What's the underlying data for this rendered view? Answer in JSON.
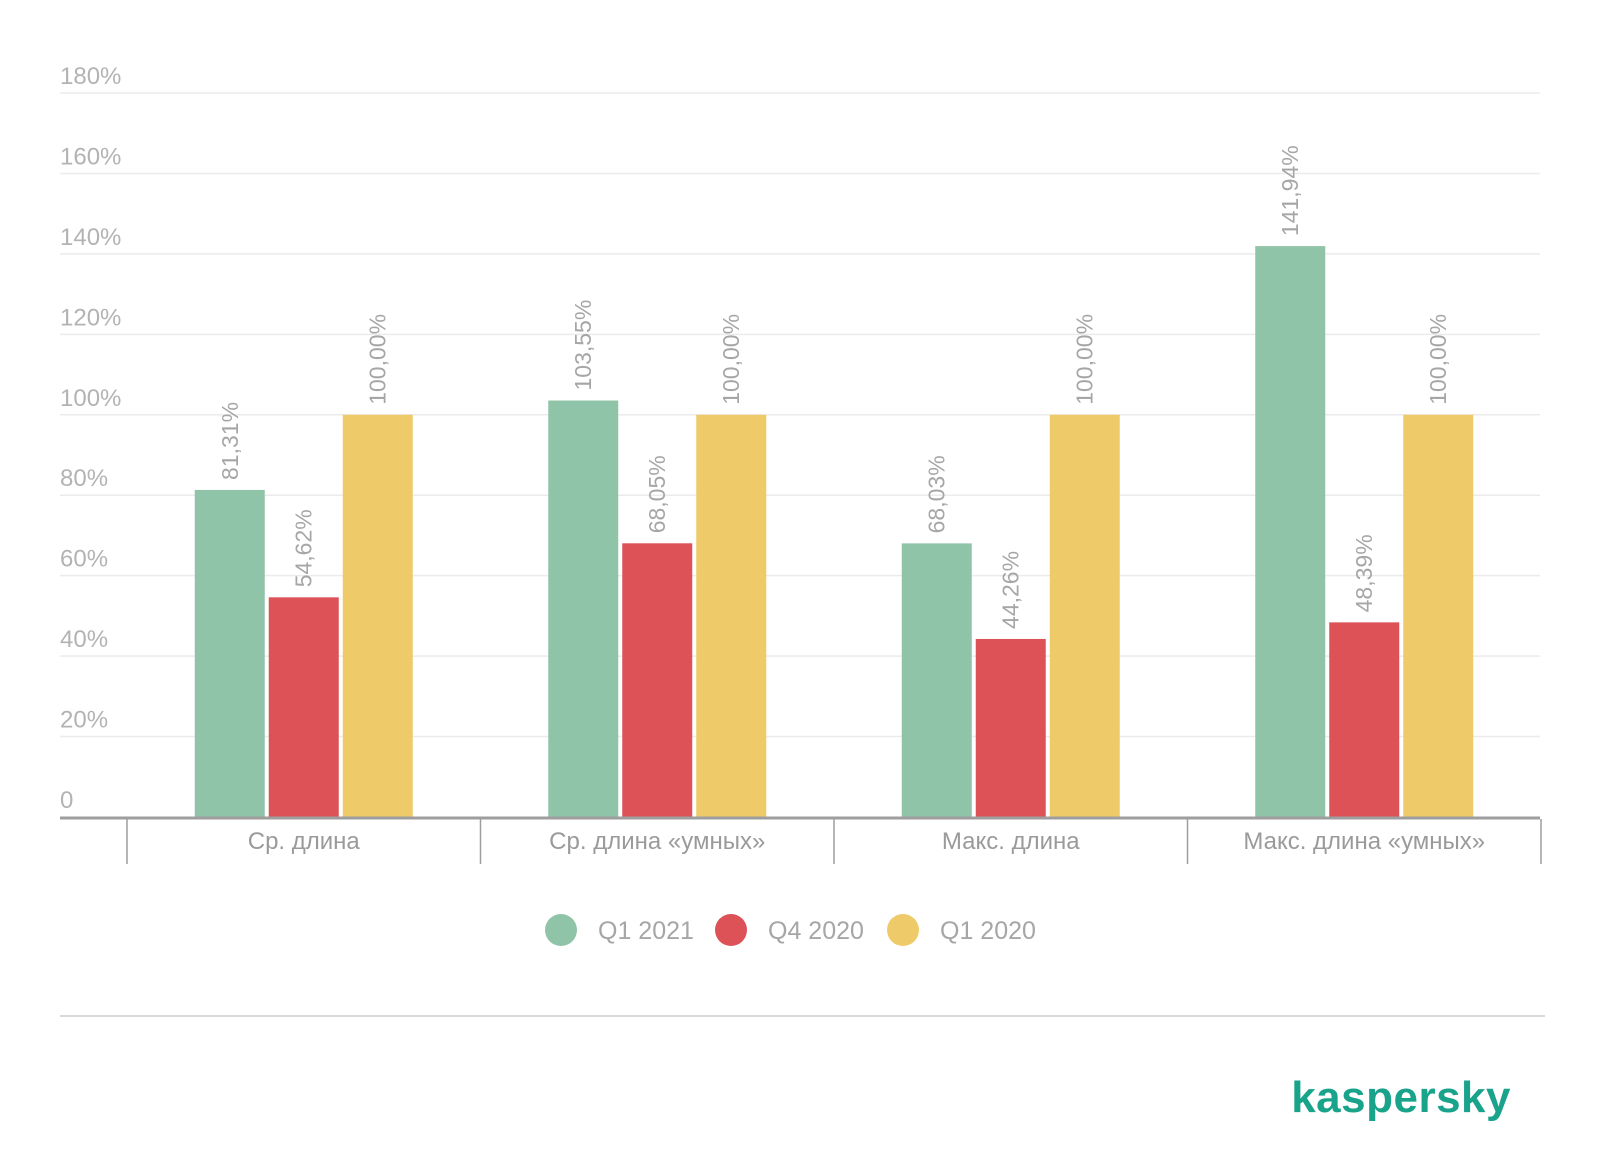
{
  "chart_data": {
    "type": "bar",
    "categories": [
      "Ср. длина",
      "Ср. длина «умных»",
      "Макс. длина",
      "Макс. длина «умных»"
    ],
    "series": [
      {
        "name": "Q1 2021",
        "color": "#90c4a8",
        "values": [
          81.31,
          103.55,
          68.03,
          141.94
        ],
        "labels": [
          "81,31%",
          "103,55%",
          "68,03%",
          "141,94%"
        ]
      },
      {
        "name": "Q4 2020",
        "color": "#dc5257",
        "values": [
          54.62,
          68.05,
          44.26,
          48.39
        ],
        "labels": [
          "54,62%",
          "68,05%",
          "44,26%",
          "48,39%"
        ]
      },
      {
        "name": "Q1 2020",
        "color": "#efca69",
        "values": [
          100.0,
          100.0,
          100.0,
          100.0
        ],
        "labels": [
          "100,00%",
          "100,00%",
          "100,00%",
          "100,00%"
        ]
      }
    ],
    "ylim": [
      0,
      180
    ],
    "yticks": [
      {
        "value": 0,
        "label": "0"
      },
      {
        "value": 20,
        "label": "20%"
      },
      {
        "value": 40,
        "label": "40%"
      },
      {
        "value": 60,
        "label": "60%"
      },
      {
        "value": 80,
        "label": "80%"
      },
      {
        "value": 100,
        "label": "100%"
      },
      {
        "value": 120,
        "label": "120%"
      },
      {
        "value": 140,
        "label": "140%"
      },
      {
        "value": 160,
        "label": "160%"
      },
      {
        "value": 180,
        "label": "180%"
      }
    ],
    "grid": true,
    "legend": "bottom-center",
    "title": "",
    "xlabel": "",
    "ylabel": ""
  },
  "branding": {
    "logo_text": "kaspersky",
    "logo_color": "#1aa38b"
  }
}
